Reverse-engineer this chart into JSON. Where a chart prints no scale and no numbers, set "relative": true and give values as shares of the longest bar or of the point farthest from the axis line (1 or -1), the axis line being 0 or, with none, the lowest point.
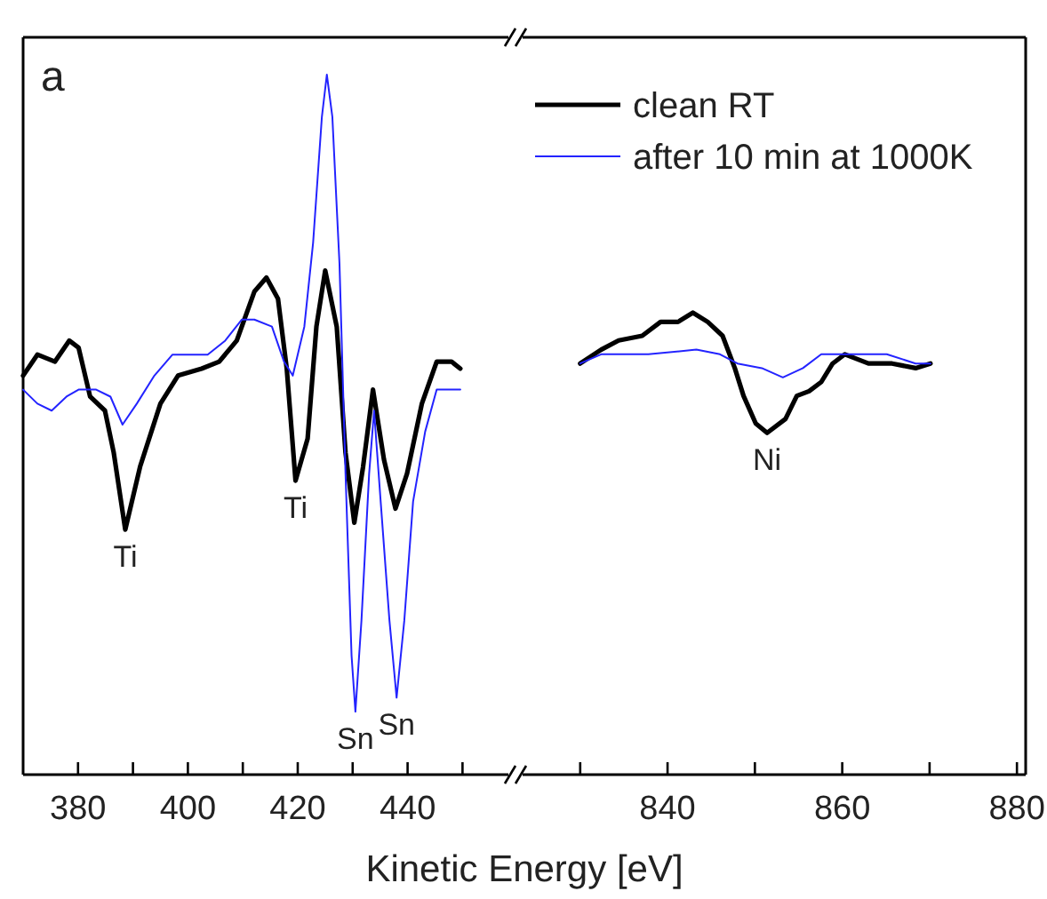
{
  "chart_data": [
    {
      "type": "line",
      "relative": true,
      "xlabel": "Kinetic Energy [eV]",
      "xlim": [
        370,
        459
      ],
      "xticks": [
        380,
        {
          "value": 390,
          "label": null
        },
        400,
        {
          "value": 410,
          "label": null
        },
        420,
        {
          "value": 430,
          "label": null
        },
        440,
        {
          "value": 450,
          "label": null
        }
      ],
      "tick_labels": "x",
      "marker": "none",
      "line_style": "solid",
      "annotations": [
        "a",
        {
          "text": "Ti",
          "x": 388.6,
          "y": 0.35
        },
        {
          "text": "Ti",
          "x": 419.6,
          "y": 0.42
        },
        {
          "text": "Sn",
          "x": 430.5,
          "y": 0.09
        },
        {
          "text": "Sn",
          "x": 438.0,
          "y": 0.11
        }
      ],
      "series": [
        {
          "color": "#000000",
          "x": [
            370,
            372.6,
            375.8,
            378.4,
            380.1,
            382.2,
            384.9,
            386.5,
            388.6,
            391.3,
            395.0,
            398.2,
            402.5,
            405.7,
            408.9,
            412.1,
            414.3,
            416.4,
            418.0,
            419.6,
            421.8,
            423.4,
            425.0,
            427.1,
            428.7,
            430.3,
            431.9,
            433.7,
            435.7,
            437.8,
            439.9,
            442.6,
            445.3,
            448.0,
            449.6
          ],
          "values": [
            0.57,
            0.6,
            0.59,
            0.62,
            0.61,
            0.54,
            0.52,
            0.46,
            0.35,
            0.44,
            0.53,
            0.57,
            0.58,
            0.59,
            0.62,
            0.69,
            0.71,
            0.68,
            0.58,
            0.42,
            0.48,
            0.64,
            0.72,
            0.64,
            0.46,
            0.36,
            0.44,
            0.55,
            0.45,
            0.38,
            0.43,
            0.53,
            0.59,
            0.59,
            0.58
          ]
        },
        {
          "color": "#2323ff",
          "x": [
            370,
            372.6,
            375.2,
            377.9,
            380.1,
            383.3,
            385.9,
            388.1,
            390.7,
            393.9,
            397.2,
            400.4,
            403.6,
            406.8,
            409.8,
            412.1,
            415.3,
            417.5,
            419.1,
            421.2,
            422.8,
            424.4,
            425.3,
            426.3,
            427.6,
            428.7,
            429.8,
            430.5,
            431.6,
            433.0,
            433.9,
            435.1,
            436.7,
            438.0,
            439.4,
            441.0,
            443.2,
            445.3,
            447.4,
            449.6
          ],
          "values": [
            0.55,
            0.53,
            0.52,
            0.54,
            0.55,
            0.55,
            0.54,
            0.5,
            0.53,
            0.57,
            0.6,
            0.6,
            0.6,
            0.62,
            0.65,
            0.65,
            0.64,
            0.59,
            0.57,
            0.64,
            0.76,
            0.94,
            1.0,
            0.94,
            0.73,
            0.43,
            0.17,
            0.09,
            0.22,
            0.43,
            0.52,
            0.39,
            0.22,
            0.11,
            0.22,
            0.39,
            0.49,
            0.55,
            0.55,
            0.55
          ]
        }
      ]
    },
    {
      "type": "line",
      "relative": true,
      "xlim": [
        823,
        881
      ],
      "xticks": [
        {
          "value": 830,
          "label": null
        },
        840,
        {
          "value": 850,
          "label": null
        },
        860,
        {
          "value": 870,
          "label": null
        },
        880
      ],
      "tick_labels": "x",
      "marker": "none",
      "line_style": "solid",
      "legend": "top",
      "annotations": [
        {
          "text": "Ni",
          "x": 851.4,
          "y": 0.74
        }
      ],
      "series": [
        {
          "name": "clean RT",
          "color": "#000000",
          "x": [
            830.0,
            832.4,
            834.4,
            837.1,
            839.2,
            841.2,
            842.9,
            844.6,
            846.3,
            847.7,
            848.7,
            850.1,
            851.4,
            853.5,
            854.8,
            856.2,
            857.6,
            858.9,
            860.3,
            863.0,
            865.7,
            868.4,
            870.1
          ],
          "values": [
            0.89,
            0.92,
            0.94,
            0.95,
            0.98,
            0.98,
            1.0,
            0.98,
            0.95,
            0.88,
            0.82,
            0.76,
            0.74,
            0.77,
            0.82,
            0.83,
            0.85,
            0.89,
            0.91,
            0.89,
            0.89,
            0.88,
            0.89
          ]
        },
        {
          "name": "after 10 min at 1000K",
          "color": "#2323ff",
          "x": [
            830.0,
            832.4,
            837.8,
            843.3,
            846.0,
            848.0,
            850.8,
            853.2,
            855.5,
            857.6,
            860.3,
            865.1,
            868.4,
            870.1
          ],
          "values": [
            0.89,
            0.91,
            0.91,
            0.92,
            0.91,
            0.89,
            0.88,
            0.86,
            0.88,
            0.91,
            0.91,
            0.91,
            0.89,
            0.89
          ]
        }
      ]
    }
  ]
}
